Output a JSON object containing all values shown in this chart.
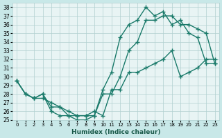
{
  "xlabel": "Humidex (Indice chaleur)",
  "ylabel": "",
  "xlim": [
    -0.5,
    23.5
  ],
  "ylim": [
    25,
    38.5
  ],
  "yticks": [
    25,
    26,
    27,
    28,
    29,
    30,
    31,
    32,
    33,
    34,
    35,
    36,
    37,
    38
  ],
  "xticks": [
    0,
    1,
    2,
    3,
    4,
    5,
    6,
    7,
    8,
    9,
    10,
    11,
    12,
    13,
    14,
    15,
    16,
    17,
    18,
    19,
    20,
    21,
    22,
    23
  ],
  "bg_color": "#c8e8e8",
  "plot_bg_color": "#e8f4f4",
  "grid_color": "#b0d0d0",
  "line_color": "#1a7a6a",
  "line_color2": "#1a7a6a",
  "line_color3": "#1a7a6a",
  "line1_x": [
    0,
    1,
    2,
    3,
    4,
    5,
    6,
    7,
    8,
    9,
    10,
    11,
    12,
    13,
    14,
    15,
    16,
    17,
    18,
    19,
    20,
    21,
    22,
    23
  ],
  "line1_y": [
    29.5,
    28.0,
    27.5,
    28.0,
    26.0,
    25.5,
    25.5,
    25.0,
    25.0,
    25.5,
    28.5,
    30.5,
    34.5,
    36.0,
    36.5,
    38.0,
    37.0,
    37.5,
    36.0,
    36.5,
    35.0,
    34.5,
    31.5,
    31.5
  ],
  "line2_x": [
    0,
    1,
    2,
    3,
    4,
    5,
    6,
    7,
    8,
    9,
    10,
    11,
    12,
    13,
    14,
    15,
    16,
    17,
    18,
    19,
    20,
    21,
    22,
    23
  ],
  "line2_y": [
    29.5,
    28.0,
    27.5,
    27.5,
    27.0,
    26.5,
    26.0,
    25.5,
    25.5,
    25.5,
    28.0,
    28.0,
    30.0,
    33.0,
    34.0,
    36.5,
    36.5,
    37.0,
    37.0,
    36.0,
    36.0,
    35.5,
    35.0,
    31.5
  ],
  "line3_x": [
    0,
    1,
    2,
    3,
    4,
    5,
    6,
    7,
    8,
    9,
    10,
    11,
    12,
    13,
    14,
    15,
    16,
    17,
    18,
    19,
    20,
    21,
    22,
    23
  ],
  "line3_y": [
    29.5,
    28.0,
    27.5,
    28.0,
    26.5,
    26.5,
    25.5,
    25.5,
    25.5,
    26.0,
    25.5,
    28.5,
    28.5,
    30.5,
    30.5,
    31.0,
    31.5,
    32.0,
    33.0,
    30.0,
    30.5,
    31.0,
    32.0,
    32.0
  ]
}
